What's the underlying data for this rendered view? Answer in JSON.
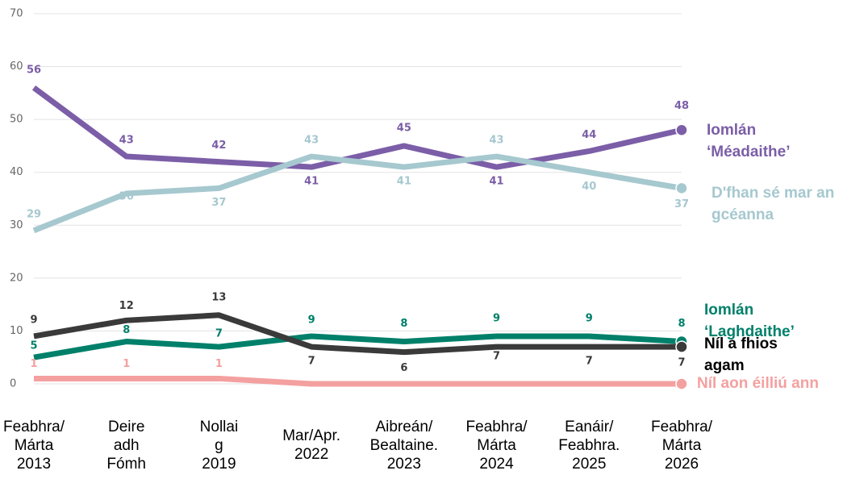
{
  "chart_data": {
    "type": "line",
    "categories": [
      "Feabhra/\nMárta\n2013",
      "Deire\nadh\nFómh",
      "Nollai\ng\n2019",
      "Mar/Apr.\n2022",
      "Aibreán/\nBealtaine.\n2023",
      "Feabhra/\nMárta\n2024",
      "Eanáir/\nFeabhra.\n2025",
      "Feabhra/\nMárta\n2026"
    ],
    "series": [
      {
        "name": "Iomlán\n‘Méadaithe’",
        "color": "#7b5ea7",
        "values": [
          56,
          43,
          42,
          41,
          45,
          41,
          44,
          48
        ]
      },
      {
        "name": "D'fhan sé mar an\ngcéanna",
        "color": "#a6c8cf",
        "values": [
          29,
          36,
          37,
          43,
          41,
          43,
          40,
          37
        ]
      },
      {
        "name": "Iomlán\n‘Laghdaithe’",
        "color": "#00806a",
        "values": [
          5,
          8,
          7,
          9,
          8,
          9,
          9,
          8
        ]
      },
      {
        "name": "Níl a fhios\nagam",
        "color": "#3a3a3a",
        "values": [
          9,
          12,
          13,
          7,
          6,
          7,
          7,
          7
        ]
      },
      {
        "name": "Níl aon éilliú ann",
        "color": "#f4a0a0",
        "values": [
          1,
          1,
          1,
          0,
          0,
          0,
          0,
          0
        ],
        "value_labels": [
          "1",
          "1",
          "1",
          null,
          null,
          null,
          null,
          null
        ]
      }
    ],
    "ylim": [
      0,
      70
    ],
    "yticks": [
      0,
      10,
      20,
      30,
      40,
      50,
      60,
      70
    ],
    "grid": true
  }
}
